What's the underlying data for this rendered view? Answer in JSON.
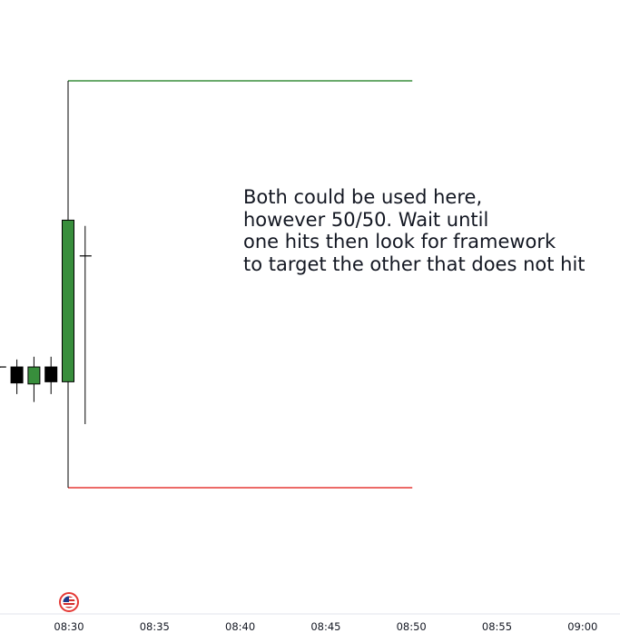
{
  "chart_data": {
    "type": "candlestick",
    "x_axis": {
      "ticks": [
        "08:30",
        "08:35",
        "08:40",
        "08:45",
        "08:50",
        "08:55",
        "09:00"
      ]
    },
    "candles": [
      {
        "direction": "up",
        "open": 0.41,
        "close": 0.47,
        "high": 0.47,
        "low": 0.41
      },
      {
        "direction": "down",
        "open": 0.47,
        "close": -0.62,
        "high": 0.98,
        "low": -1.38
      },
      {
        "direction": "up",
        "open": -0.69,
        "close": 0.47,
        "high": 1.17,
        "low": -1.92
      },
      {
        "direction": "down",
        "open": 0.47,
        "close": -0.54,
        "high": 1.17,
        "low": -1.38
      },
      {
        "direction": "up",
        "open": -0.54,
        "close": 10.49,
        "high": 20.0,
        "low": -7.77
      },
      {
        "direction": "up",
        "open": 8.05,
        "close": 8.05,
        "high": 10.1,
        "low": -3.43
      }
    ],
    "levels": [
      {
        "name": "upper-level",
        "value": 20.0,
        "color": "#388e3c",
        "from_index": 4,
        "to_time": "08:50"
      },
      {
        "name": "lower-level",
        "value": -7.77,
        "color": "#e53935",
        "from_index": 4,
        "to_time": "08:50"
      }
    ],
    "annotation": [
      "Both could be used here,",
      "however 50/50. Wait until",
      "one hits then look for framework",
      "to target the other that does not hit"
    ],
    "event_marker": {
      "time": "08:30",
      "icon": "us-flag-icon"
    },
    "colors": {
      "up": "#388e3c",
      "down": "#000000",
      "wick": "#000000",
      "axis_line": "#e0e3eb",
      "tick_text": "#131722"
    }
  }
}
